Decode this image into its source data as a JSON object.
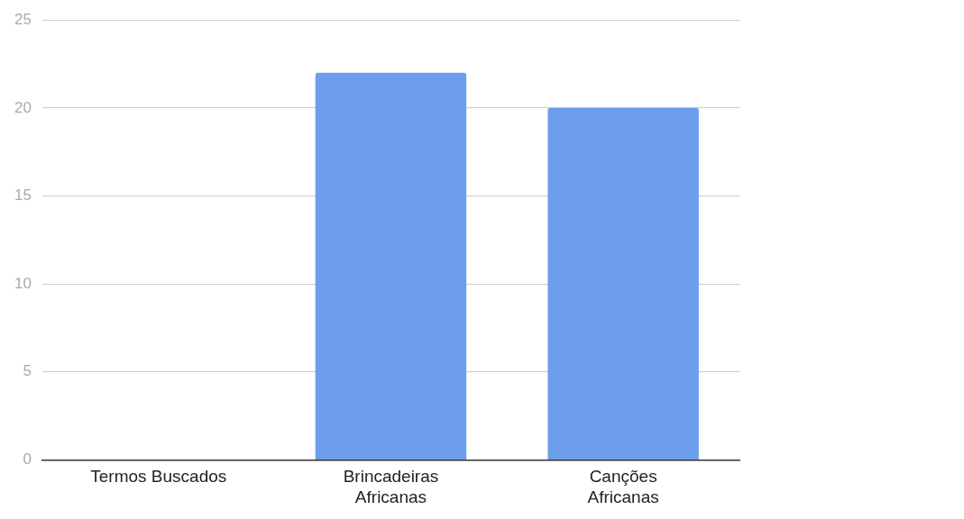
{
  "chart_data": {
    "type": "bar",
    "categories": [
      "Termos Buscados",
      "Brincadeiras Africanas",
      "Canções Africanas"
    ],
    "values": [
      null,
      22,
      20
    ],
    "color": "#6d9eeb",
    "ylim": [
      0,
      25
    ],
    "yticks": [
      0,
      5,
      10,
      15,
      20,
      25
    ],
    "grid": "y",
    "legend": false
  }
}
